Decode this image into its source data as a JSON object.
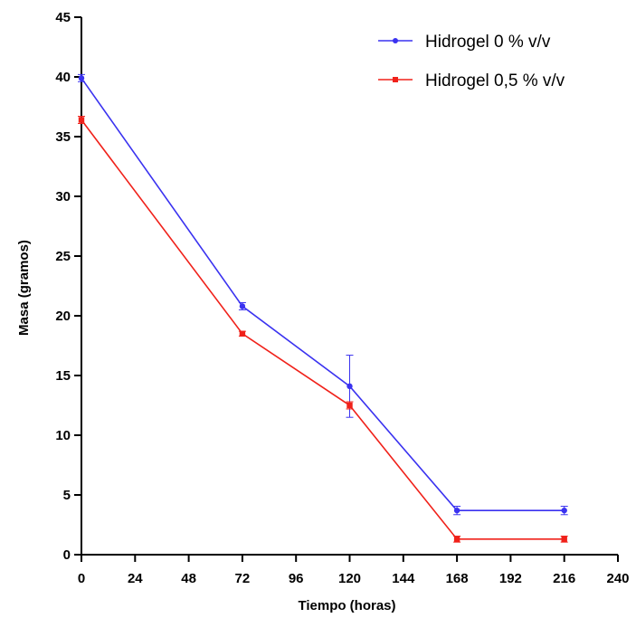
{
  "chart_data": {
    "type": "line",
    "xlabel": "Tiempo (horas)",
    "ylabel": "Masa (gramos)",
    "xlim": [
      0,
      240
    ],
    "ylim": [
      0,
      45
    ],
    "xticks": [
      0,
      24,
      48,
      72,
      96,
      120,
      144,
      168,
      192,
      216,
      240
    ],
    "yticks": [
      0,
      5,
      10,
      15,
      20,
      25,
      30,
      35,
      40,
      45
    ],
    "grid": false,
    "legend_position": "top-right",
    "series": [
      {
        "name": "Hidrogel 0 % v/v",
        "color": "#3a32f0",
        "marker": "circle",
        "points": [
          {
            "x": 0,
            "y": 39.9,
            "err": 0.3
          },
          {
            "x": 72,
            "y": 20.8,
            "err": 0.3
          },
          {
            "x": 120,
            "y": 14.1,
            "err": 2.6
          },
          {
            "x": 168,
            "y": 3.7,
            "err": 0.35
          },
          {
            "x": 216,
            "y": 3.7,
            "err": 0.35
          }
        ]
      },
      {
        "name": "Hidrogel 0,5 % v/v",
        "color": "#f0211a",
        "marker": "square",
        "points": [
          {
            "x": 0,
            "y": 36.4,
            "err": 0.3
          },
          {
            "x": 72,
            "y": 18.5,
            "err": 0.2
          },
          {
            "x": 120,
            "y": 12.5,
            "err": 0.3
          },
          {
            "x": 168,
            "y": 1.3,
            "err": 0.25
          },
          {
            "x": 216,
            "y": 1.3,
            "err": 0.25
          }
        ]
      }
    ]
  }
}
